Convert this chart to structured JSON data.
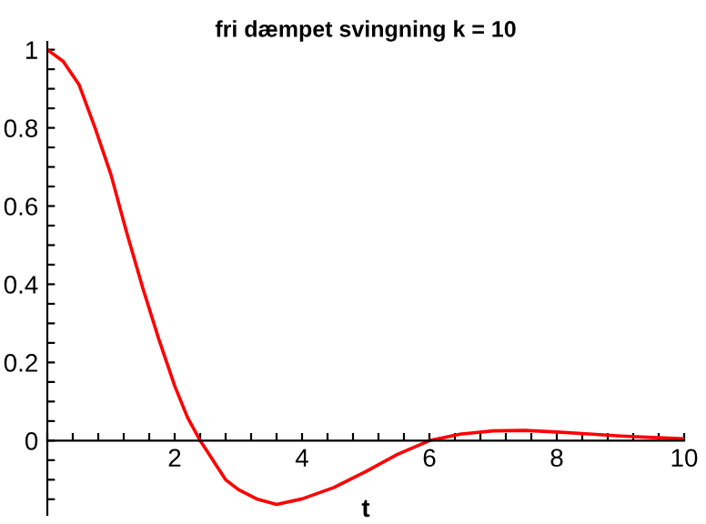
{
  "chart_data": {
    "type": "line",
    "title": "fri dæmpet svingning k = 10",
    "xlabel": "t",
    "x": [
      0,
      0.25,
      0.5,
      0.75,
      1,
      1.25,
      1.5,
      1.75,
      2,
      2.2,
      2.4,
      2.6,
      2.8,
      3,
      3.3,
      3.6,
      4,
      4.5,
      5,
      5.5,
      6,
      6.5,
      7,
      7.5,
      8,
      8.5,
      9,
      9.5,
      10
    ],
    "series": [
      {
        "color": "#ff0000",
        "values": [
          1,
          0.97,
          0.91,
          0.8,
          0.68,
          0.53,
          0.39,
          0.26,
          0.14,
          0.06,
          0,
          -0.05,
          -0.1,
          -0.125,
          -0.15,
          -0.163,
          -0.149,
          -0.12,
          -0.079,
          -0.035,
          0,
          0.017,
          0.025,
          0.026,
          0.022,
          0.017,
          0.012,
          0.008,
          0.005
        ]
      }
    ],
    "xlim": [
      0,
      10
    ],
    "ylim": [
      -0.19,
      1.02
    ],
    "xticks": [
      2,
      4,
      6,
      8,
      10
    ],
    "yticks": [
      0,
      0.2,
      0.4,
      0.6,
      0.8,
      1
    ],
    "grid": false,
    "legend": false,
    "marker": "none",
    "line_style": "solid"
  }
}
